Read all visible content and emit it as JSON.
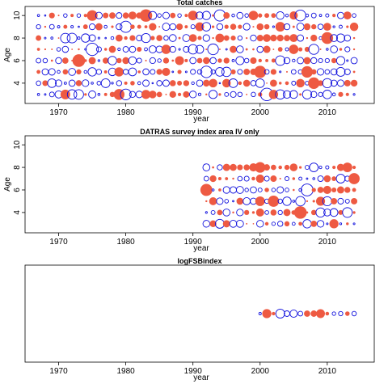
{
  "colors": {
    "positive": "#EE5A42",
    "negative": "#1010DD",
    "axis": "#000000"
  },
  "chart_data": [
    {
      "type": "scatter",
      "title": "Total catches",
      "xlabel": "year",
      "ylabel": "Age",
      "xlim": [
        1965,
        2017
      ],
      "ylim": [
        2.2,
        10.8
      ],
      "xticks": [
        1970,
        1980,
        1990,
        2000,
        2010
      ],
      "yticks": [
        4,
        6,
        8,
        10
      ],
      "x_range": [
        1967,
        2014
      ],
      "y_values": [
        3,
        4,
        5,
        6,
        7,
        8,
        9,
        10
      ],
      "seed": 17,
      "rmax": 8,
      "description_note": ""
    },
    {
      "type": "scatter",
      "title": "DATRAS survey index area IV only",
      "xlabel": "year",
      "ylabel": "Age",
      "xlim": [
        1965,
        2017
      ],
      "ylim": [
        2.2,
        10.8
      ],
      "xticks": [
        1970,
        1980,
        1990,
        2000,
        2010
      ],
      "yticks": [
        4,
        6,
        8,
        10
      ],
      "x_range": [
        1992,
        2014
      ],
      "y_values": [
        3,
        4,
        5,
        6,
        7,
        8
      ],
      "seed": 41,
      "rmax": 8
    },
    {
      "type": "scatter",
      "title": "logFSBindex",
      "xlabel": "year",
      "ylabel": "",
      "xlim": [
        1965,
        2017
      ],
      "ylim": [
        0,
        1
      ],
      "xticks": [
        1970,
        1980,
        1990,
        2000,
        2010
      ],
      "yticks": [],
      "x_range": [
        2000,
        2014
      ],
      "y_values": [
        0.5
      ],
      "seed": 7,
      "rmax": 6
    }
  ]
}
